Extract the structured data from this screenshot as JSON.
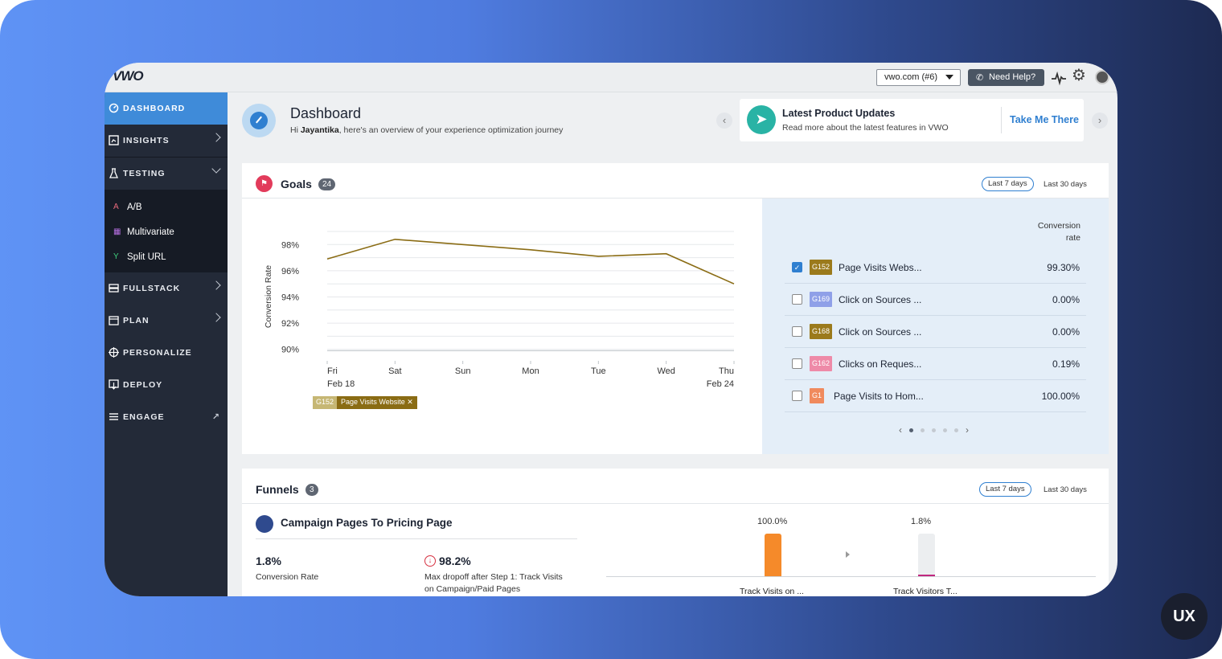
{
  "app": {
    "logo": "VWO",
    "account_selector": "vwo.com (#6)",
    "help_button": "Need Help?"
  },
  "sidebar": {
    "items": [
      {
        "label": "DASHBOARD",
        "icon": "dashboard-icon",
        "active": true
      },
      {
        "label": "INSIGHTS",
        "icon": "insights-icon"
      },
      {
        "label": "TESTING",
        "icon": "flask-icon"
      },
      {
        "label": "FULLSTACK",
        "icon": "fullstack-icon"
      },
      {
        "label": "PLAN",
        "icon": "calendar-icon"
      },
      {
        "label": "PERSONALIZE",
        "icon": "target-icon"
      },
      {
        "label": "DEPLOY",
        "icon": "deploy-icon"
      },
      {
        "label": "ENGAGE",
        "icon": "engage-icon"
      }
    ],
    "testing_sub": [
      {
        "label": "A/B",
        "icon": "ab-icon"
      },
      {
        "label": "Multivariate",
        "icon": "multivariate-icon"
      },
      {
        "label": "Split URL",
        "icon": "split-icon"
      }
    ]
  },
  "header": {
    "title": "Dashboard",
    "greeting_prefix": "Hi ",
    "user_name": "Jayantika",
    "greeting_suffix": ", here's an overview of your experience optimization journey"
  },
  "updates": {
    "title": "Latest Product Updates",
    "subtitle": "Read more about the latest features in VWO",
    "link": "Take Me There"
  },
  "goals": {
    "title": "Goals",
    "count": "24",
    "range_selected": "Last 7 days",
    "range_alt": "Last 30 days",
    "column_header_line1": "Conversion",
    "column_header_line2": "rate",
    "legend_id": "G152",
    "legend_name": "Page Visits Website",
    "rows": [
      {
        "id": "G152",
        "name": "Page Visits Webs...",
        "rate": "99.30%",
        "checked": true,
        "color": "#9b7a1c"
      },
      {
        "id": "G169",
        "name": "Click on Sources ...",
        "rate": "0.00%",
        "checked": false,
        "color": "#8fa0e8"
      },
      {
        "id": "G168",
        "name": "Click on Sources ...",
        "rate": "0.00%",
        "checked": false,
        "color": "#9b7a1c"
      },
      {
        "id": "G162",
        "name": "Clicks on Reques...",
        "rate": "0.19%",
        "checked": false,
        "color": "#ee8aa8"
      },
      {
        "id": "G1",
        "name": "Page Visits to Hom...",
        "rate": "100.00%",
        "checked": false,
        "color": "#f08a5d"
      }
    ],
    "pager_prev": "‹",
    "pager_next": "›"
  },
  "chart_data": {
    "type": "line",
    "ylabel": "Conversion Rate",
    "xlabel": "",
    "categories": [
      "Fri",
      "Sat",
      "Sun",
      "Mon",
      "Tue",
      "Wed",
      "Thu"
    ],
    "category_sublabels": [
      "Feb 18",
      "",
      "",
      "",
      "",
      "",
      "Feb 24"
    ],
    "y_ticks": [
      "98%",
      "96%",
      "94%",
      "92%",
      "90%"
    ],
    "ylim": [
      89,
      99
    ],
    "series": [
      {
        "name": "G152 Page Visits Website",
        "color": "#8a6c14",
        "values": [
          96.9,
          98.4,
          98.0,
          97.6,
          97.1,
          97.3,
          95.0
        ]
      }
    ]
  },
  "funnels": {
    "title": "Funnels",
    "count": "3",
    "range_selected": "Last 7 days",
    "range_alt": "Last 30 days",
    "campaign": "Campaign Pages To Pricing Page",
    "conversion_value": "1.8%",
    "conversion_label": "Conversion Rate",
    "dropoff_value": "98.2%",
    "dropoff_line1": "Max dropoff after Step 1: Track Visits",
    "dropoff_line2": "on Campaign/Paid Pages",
    "steps": [
      {
        "pct_label": "100.0%",
        "value": 100,
        "label": "Track Visits on ...",
        "color": "#f58a2a"
      },
      {
        "pct_label": "1.8%",
        "value": 1.8,
        "label": "Track Visitors T...",
        "color": "#c0287f"
      }
    ]
  },
  "badge": "UX"
}
